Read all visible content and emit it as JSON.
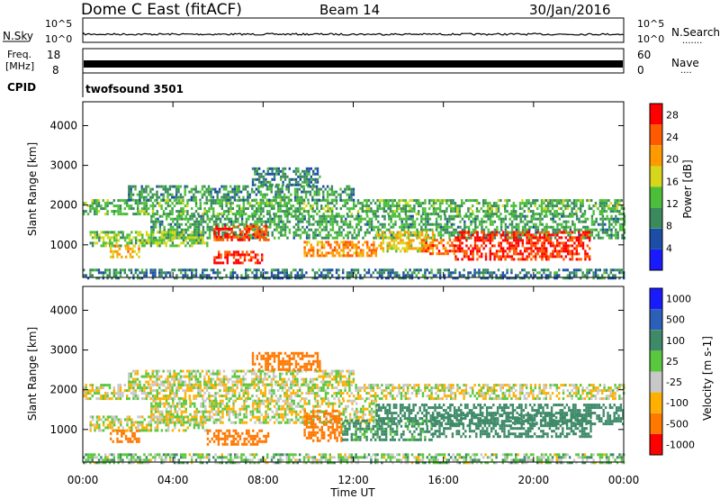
{
  "header": {
    "title": "Dome C East (fitACF)",
    "beam": "Beam 14",
    "date": "30/Jan/2016"
  },
  "aux_panels": {
    "nsky_label": "N.Sky",
    "nsearch_label": "N.Search",
    "nsearch_dots": "·······",
    "noise_ticks": [
      "10^5",
      "10^0"
    ],
    "freq_label_1": "Freq.",
    "freq_label_2": "[MHz]",
    "freq_ticks": [
      "18",
      "8"
    ],
    "nave_label": "Nave",
    "nave_dots": "····",
    "nave_ticks": [
      "60",
      "0"
    ],
    "cpid_label": "CPID",
    "cpid_value": "twofsound 3501"
  },
  "chart_data": [
    {
      "type": "heatmap",
      "name": "power",
      "ylabel": "Slant Range [km]",
      "yticks": [
        1000,
        2000,
        3000,
        4000
      ],
      "ylim": [
        180,
        4600
      ],
      "colorbar_label": "Power [dB]",
      "colorbar_ticks": [
        4,
        8,
        12,
        16,
        20,
        24,
        28
      ],
      "colorbar_range": [
        0,
        30
      ],
      "colors": [
        "#1a1aff",
        "#1c4ea8",
        "#3a8a5e",
        "#4cbf3a",
        "#d6d61a",
        "#ff9a00",
        "#ff5a00",
        "#ff0000"
      ],
      "echo_regions": [
        {
          "t0": 0.0,
          "t1": 24.0,
          "r0": 1780,
          "r1": 2150,
          "value": 12
        },
        {
          "t0": 2.0,
          "t1": 12.0,
          "r0": 2150,
          "r1": 2500,
          "value": 10
        },
        {
          "t0": 7.5,
          "t1": 10.5,
          "r0": 2500,
          "r1": 2950,
          "value": 9
        },
        {
          "t0": 3.0,
          "t1": 24.0,
          "r0": 1200,
          "r1": 1750,
          "value": 11
        },
        {
          "t0": 0.3,
          "t1": 5.5,
          "r0": 950,
          "r1": 1350,
          "value": 14
        },
        {
          "t0": 1.2,
          "t1": 2.5,
          "r0": 700,
          "r1": 1000,
          "value": 20
        },
        {
          "t0": 5.8,
          "t1": 8.2,
          "r0": 1100,
          "r1": 1500,
          "value": 26
        },
        {
          "t0": 5.8,
          "t1": 8.0,
          "r0": 550,
          "r1": 850,
          "value": 27
        },
        {
          "t0": 9.8,
          "t1": 13.0,
          "r0": 700,
          "r1": 1100,
          "value": 22
        },
        {
          "t0": 13.0,
          "t1": 15.5,
          "r0": 850,
          "r1": 1350,
          "value": 18
        },
        {
          "t0": 15.0,
          "t1": 16.5,
          "r0": 750,
          "r1": 1150,
          "value": 24
        },
        {
          "t0": 16.5,
          "t1": 22.5,
          "r0": 650,
          "r1": 1350,
          "value": 27
        },
        {
          "t0": 0.0,
          "t1": 24.0,
          "r0": 180,
          "r1": 400,
          "value": 8
        }
      ]
    },
    {
      "type": "heatmap",
      "name": "velocity",
      "ylabel": "Slant Range [km]",
      "yticks": [
        1000,
        2000,
        3000,
        4000
      ],
      "ylim": [
        180,
        4600
      ],
      "colorbar_label": "Velocity [m s-1]",
      "colorbar_ticks": [
        "1000",
        "500",
        "100",
        "25",
        "-25",
        "-100",
        "-500",
        "-1000"
      ],
      "colors": [
        "#1a1aff",
        "#2c5fb8",
        "#3e8a68",
        "#5ac83e",
        "#c8c8c8",
        "#ffb000",
        "#ff7800",
        "#ff0000"
      ],
      "echo_regions": [
        {
          "t0": 0.0,
          "t1": 24.0,
          "r0": 1780,
          "r1": 2150,
          "value": 0
        },
        {
          "t0": 2.0,
          "t1": 12.0,
          "r0": 2150,
          "r1": 2500,
          "value": 0
        },
        {
          "t0": 7.5,
          "t1": 10.5,
          "r0": 2500,
          "r1": 2950,
          "value": -200
        },
        {
          "t0": 3.0,
          "t1": 13.0,
          "r0": 1200,
          "r1": 1750,
          "value": 0
        },
        {
          "t0": 13.0,
          "t1": 24.0,
          "r0": 1150,
          "r1": 1650,
          "value": 300
        },
        {
          "t0": 0.3,
          "t1": 5.5,
          "r0": 950,
          "r1": 1350,
          "value": 0
        },
        {
          "t0": 1.2,
          "t1": 2.5,
          "r0": 700,
          "r1": 1000,
          "value": -150
        },
        {
          "t0": 5.5,
          "t1": 8.2,
          "r0": 600,
          "r1": 1000,
          "value": -300
        },
        {
          "t0": 9.8,
          "t1": 11.5,
          "r0": 700,
          "r1": 1500,
          "value": -350
        },
        {
          "t0": 11.5,
          "t1": 15.5,
          "r0": 750,
          "r1": 1250,
          "value": 150
        },
        {
          "t0": 15.5,
          "t1": 22.5,
          "r0": 800,
          "r1": 1400,
          "value": 200
        },
        {
          "t0": 0.0,
          "t1": 24.0,
          "r0": 180,
          "r1": 400,
          "value": 50
        }
      ]
    }
  ],
  "x_axis": {
    "label": "Time UT",
    "ticks": [
      "00:00",
      "04:00",
      "08:00",
      "12:00",
      "16:00",
      "20:00",
      "00:00"
    ],
    "range_hours": [
      0,
      24
    ]
  }
}
